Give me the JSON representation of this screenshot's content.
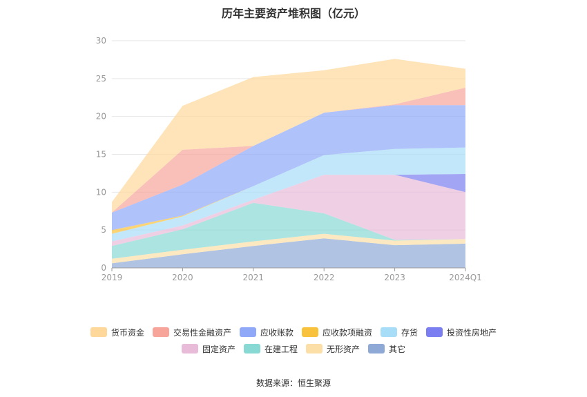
{
  "title": "历年主要资产堆积图（亿元）",
  "source": "数据来源：恒生聚源",
  "chart_data": {
    "type": "area",
    "stacked": true,
    "title": "历年主要资产堆积图（亿元）",
    "categories": [
      "2019",
      "2020",
      "2021",
      "2022",
      "2023",
      "2024Q1"
    ],
    "ylim": [
      0,
      30
    ],
    "yticks": [
      "0",
      "5",
      "10",
      "15",
      "20",
      "25",
      "30"
    ],
    "grid": true,
    "legend_position": "bottom",
    "series": [
      {
        "name": "其它",
        "color": "#8fa9d6",
        "values": [
          0.6,
          1.8,
          2.9,
          3.9,
          3.0,
          3.2
        ]
      },
      {
        "name": "无形资产",
        "color": "#fcdfa6",
        "values": [
          0.6,
          0.6,
          0.6,
          0.6,
          0.6,
          0.6
        ]
      },
      {
        "name": "在建工程",
        "color": "#88d8d3",
        "values": [
          1.7,
          2.7,
          5.1,
          2.7,
          0.1,
          0.0
        ]
      },
      {
        "name": "固定资产",
        "color": "#e8bbd8",
        "values": [
          0.6,
          0.5,
          0.4,
          5.1,
          8.6,
          6.2
        ]
      },
      {
        "name": "投资性房地产",
        "color": "#7b7ef0",
        "values": [
          0.0,
          0.0,
          0.0,
          0.0,
          0.0,
          2.4
        ]
      },
      {
        "name": "存货",
        "color": "#a8ddf8",
        "values": [
          1.0,
          1.2,
          1.8,
          2.6,
          3.4,
          3.5
        ]
      },
      {
        "name": "应收款项融资",
        "color": "#f9c23c",
        "values": [
          0.5,
          0.1,
          0.0,
          0.0,
          0.0,
          0.0
        ]
      },
      {
        "name": "应收账款",
        "color": "#8fa8f8",
        "values": [
          2.3,
          4.1,
          5.3,
          5.6,
          5.8,
          5.6
        ]
      },
      {
        "name": "交易性金融资产",
        "color": "#f7a49b",
        "values": [
          0.0,
          4.6,
          0.0,
          0.0,
          0.1,
          2.3
        ]
      },
      {
        "name": "货币资金",
        "color": "#fdd89a",
        "values": [
          1.4,
          5.8,
          9.1,
          5.6,
          6.0,
          2.5
        ]
      }
    ]
  },
  "legend": [
    [
      "货币资金",
      "交易性金融资产",
      "应收账款",
      "应收款项融资",
      "存货",
      "投资性房地产"
    ],
    [
      "固定资产",
      "在建工程",
      "无形资产",
      "其它"
    ]
  ],
  "legend_colors": {
    "货币资金": "#fdd89a",
    "交易性金融资产": "#f7a49b",
    "应收账款": "#8fa8f8",
    "应收款项融资": "#f9c23c",
    "存货": "#a8ddf8",
    "投资性房地产": "#7b7ef0",
    "固定资产": "#e8bbd8",
    "在建工程": "#88d8d3",
    "无形资产": "#fcdfa6",
    "其它": "#8fa9d6"
  }
}
